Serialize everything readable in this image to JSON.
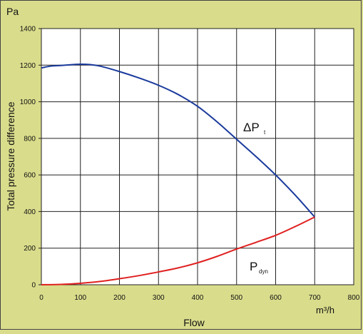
{
  "chart_data": {
    "type": "line",
    "y_unit": "Pa",
    "ylabel": "Total pressure difference",
    "xlabel": "Flow",
    "x_unit": "m³/h",
    "xlim": [
      0,
      800
    ],
    "ylim": [
      0,
      1400
    ],
    "x_ticks": [
      0,
      100,
      200,
      300,
      400,
      500,
      600,
      700,
      800
    ],
    "y_ticks": [
      0,
      200,
      400,
      600,
      800,
      1000,
      1200,
      1400
    ],
    "grid": true,
    "background_color": "#d9dc8b",
    "plot_background_color": "#ffffff",
    "series": [
      {
        "label_main": "ΔP",
        "label_sub": "t",
        "color": "#1a3a9c",
        "x": [
          0,
          25,
          50,
          75,
          100,
          125,
          150,
          200,
          250,
          300,
          350,
          400,
          450,
          500,
          550,
          600,
          650,
          700
        ],
        "y": [
          1185,
          1195,
          1198,
          1202,
          1205,
          1203,
          1195,
          1165,
          1130,
          1090,
          1040,
          975,
          890,
          795,
          700,
          600,
          490,
          370
        ]
      },
      {
        "label_main": "P",
        "label_sub": "dyn",
        "color": "#e02020",
        "x": [
          0,
          50,
          100,
          150,
          200,
          250,
          300,
          350,
          400,
          450,
          500,
          550,
          600,
          650,
          700
        ],
        "y": [
          0,
          2,
          8,
          18,
          33,
          50,
          70,
          92,
          120,
          155,
          195,
          232,
          270,
          318,
          370
        ]
      }
    ]
  }
}
